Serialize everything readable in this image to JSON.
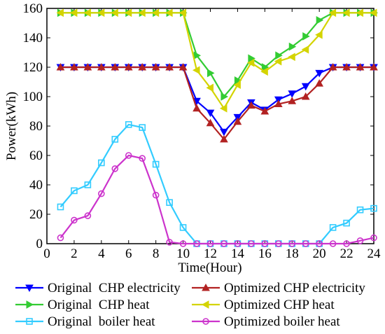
{
  "chart_data": {
    "type": "line",
    "xlabel": "Time(Hour)",
    "ylabel": "Power(kWh)",
    "xlim": [
      0,
      24
    ],
    "ylim": [
      0,
      160
    ],
    "x_ticks": [
      0,
      2,
      4,
      6,
      8,
      10,
      12,
      14,
      16,
      18,
      20,
      22,
      24
    ],
    "y_ticks": [
      0,
      20,
      40,
      60,
      80,
      100,
      120,
      140,
      160
    ],
    "grid": false,
    "legend_position": "bottom",
    "x": [
      1,
      2,
      3,
      4,
      5,
      6,
      7,
      8,
      9,
      10,
      11,
      12,
      13,
      14,
      15,
      16,
      17,
      18,
      19,
      20,
      21,
      22,
      23,
      24
    ],
    "series": [
      {
        "name": "Original  CHP electricity",
        "color": "#0000ff",
        "marker": "triangle-down",
        "values": [
          120,
          120,
          120,
          120,
          120,
          120,
          120,
          120,
          120,
          120,
          97,
          89,
          76,
          86,
          96,
          91,
          98,
          102,
          107,
          116,
          120,
          120,
          120,
          120
        ]
      },
      {
        "name": "Optimized CHP electricity",
        "color": "#b22222",
        "marker": "triangle-up",
        "values": [
          120,
          120,
          120,
          120,
          120,
          120,
          120,
          120,
          120,
          120,
          92,
          82,
          71,
          83,
          94,
          90,
          95,
          97,
          100,
          109,
          120,
          120,
          120,
          120
        ]
      },
      {
        "name": "Original  CHP heat",
        "color": "#33cc33",
        "marker": "triangle-right",
        "values": [
          157,
          157,
          157,
          157,
          157,
          157,
          157,
          157,
          157,
          157,
          128,
          116,
          100,
          111,
          126,
          120,
          128,
          134,
          141,
          152,
          157,
          157,
          157,
          157
        ]
      },
      {
        "name": "Optimized CHP heat",
        "color": "#d4d400",
        "marker": "triangle-left",
        "values": [
          157,
          157,
          157,
          157,
          157,
          157,
          157,
          157,
          157,
          157,
          118,
          106,
          92,
          108,
          123,
          117,
          124,
          127,
          132,
          142,
          157,
          157,
          157,
          157
        ]
      },
      {
        "name": "Original  boiler heat",
        "color": "#33ccff",
        "marker": "square",
        "values": [
          25,
          36,
          40,
          55,
          71,
          81,
          79,
          54,
          28,
          11,
          0,
          0,
          0,
          0,
          0,
          0,
          0,
          0,
          0,
          0,
          11,
          14,
          23,
          24
        ]
      },
      {
        "name": "Optimized boiler heat",
        "color": "#cc33cc",
        "marker": "circle",
        "values": [
          4,
          16,
          19,
          34,
          51,
          60,
          58,
          33,
          1,
          0,
          0,
          0,
          0,
          0,
          0,
          0,
          0,
          0,
          0,
          0,
          0,
          0,
          2,
          4
        ]
      }
    ],
    "legend_order": [
      0,
      1,
      2,
      3,
      4,
      5
    ]
  }
}
